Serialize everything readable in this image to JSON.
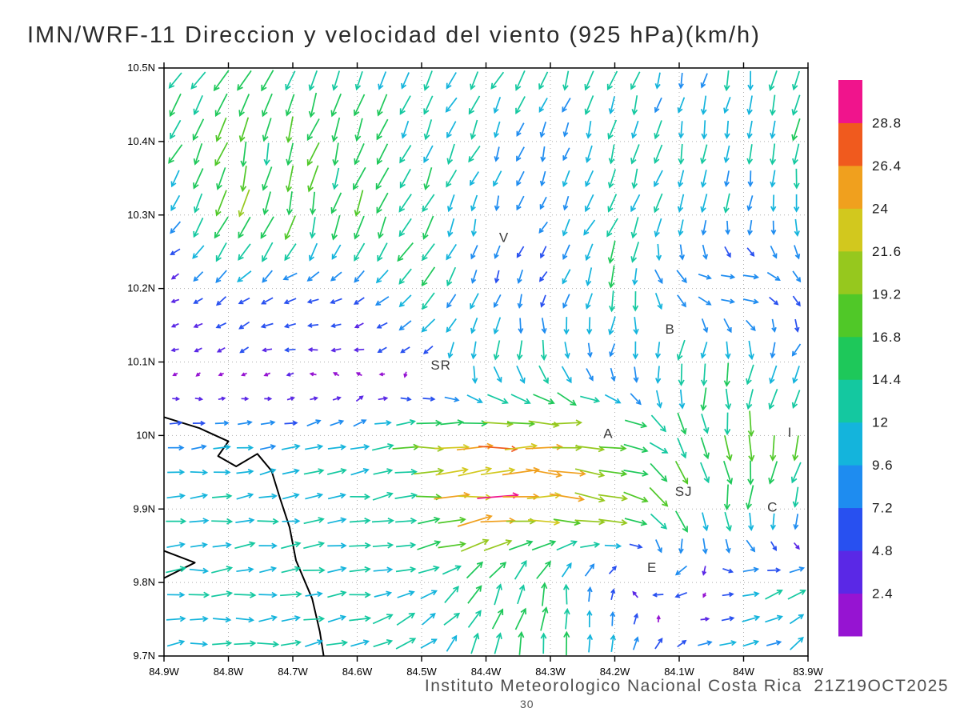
{
  "title": "IMN/WRF-11 Direccion y velocidad del viento (925 hPa)(km/h)",
  "footer": {
    "text": "Instituto Meteorologico Nacional Costa Rica  21Z19OCT2025",
    "annotation": "30"
  },
  "chart_data": {
    "type": "quiver",
    "title": "IMN/WRF-11 Direccion y velocidad del viento (925 hPa)(km/h)",
    "units": "km/h",
    "level": "925 hPa",
    "lon_range": [
      -84.9,
      -83.9
    ],
    "lat_range": [
      9.7,
      10.5
    ],
    "grid_dotted": true,
    "x_axis": {
      "ticks": [
        "84.9W",
        "84.8W",
        "84.7W",
        "84.6W",
        "84.5W",
        "84.4W",
        "84.3W",
        "84.2W",
        "84.1W",
        "84W",
        "83.9W"
      ],
      "lon_values": [
        -84.9,
        -84.8,
        -84.7,
        -84.6,
        -84.5,
        -84.4,
        -84.3,
        -84.2,
        -84.1,
        -84.0,
        -83.9
      ]
    },
    "y_axis": {
      "ticks": [
        "10.5N",
        "10.4N",
        "10.3N",
        "10.2N",
        "10.1N",
        "10N",
        "9.9N",
        "9.8N",
        "9.7N"
      ],
      "lat_values": [
        10.5,
        10.4,
        10.3,
        10.2,
        10.1,
        10.0,
        9.9,
        9.8,
        9.7
      ]
    },
    "colorbar": {
      "levels": [
        2.4,
        4.8,
        7.2,
        9.6,
        12,
        14.4,
        16.8,
        19.2,
        21.6,
        24,
        26.4,
        28.8
      ],
      "labels": [
        "2.4",
        "4.8",
        "7.2",
        "9.6",
        "12",
        "14.4",
        "16.8",
        "19.2",
        "21.6",
        "24",
        "26.4",
        "28.8"
      ],
      "colors": [
        "#9614D2",
        "#5A28E6",
        "#2850F0",
        "#1E8CF0",
        "#14B4DC",
        "#14C8A0",
        "#1EC85A",
        "#50C828",
        "#96C81E",
        "#D2C81E",
        "#F0A01E",
        "#F05A1E",
        "#F0148C"
      ]
    },
    "arrow_density": {
      "nx": 28,
      "ny": 24
    },
    "wind_grid": {
      "lons": [
        -84.9,
        -84.8,
        -84.7,
        -84.6,
        -84.5,
        -84.4,
        -84.3,
        -84.2,
        -84.1,
        -84.0,
        -83.9
      ],
      "lats_top_to_bottom": [
        10.5,
        10.4,
        10.3,
        10.2,
        10.1,
        10.0,
        9.9,
        9.8,
        9.7
      ],
      "uv_kmh": [
        [
          [
            -8,
            -12
          ],
          [
            -8,
            -13
          ],
          [
            -4,
            -12
          ],
          [
            -5,
            -12
          ],
          [
            -6,
            -11
          ],
          [
            -6,
            -11
          ],
          [
            -5,
            -12
          ],
          [
            -4,
            -12
          ],
          [
            -2,
            -9
          ],
          [
            -2,
            -12
          ],
          [
            -2,
            -14
          ]
        ],
        [
          [
            -9,
            -13
          ],
          [
            -5,
            -15
          ],
          [
            -4,
            -16
          ],
          [
            -6,
            -14
          ],
          [
            -5,
            -11
          ],
          [
            -5,
            -10
          ],
          [
            -2,
            -8
          ],
          [
            -3,
            -11
          ],
          [
            -2,
            -11
          ],
          [
            -1,
            -11
          ],
          [
            -2,
            -14
          ]
        ],
        [
          [
            -6,
            -4
          ],
          [
            -7,
            -19
          ],
          [
            -4,
            -17
          ],
          [
            -6,
            -15
          ],
          [
            -7,
            -14
          ],
          [
            -2,
            -8
          ],
          [
            -4,
            -7
          ],
          [
            -6,
            -13
          ],
          [
            -5,
            -12
          ],
          [
            -2,
            -10
          ],
          [
            2,
            -10
          ]
        ],
        [
          [
            -3,
            0
          ],
          [
            -6,
            -6
          ],
          [
            -7,
            -2
          ],
          [
            -6,
            -4
          ],
          [
            -9,
            -12
          ],
          [
            -3,
            -7
          ],
          [
            -4,
            -6
          ],
          [
            -3,
            -14
          ],
          [
            9,
            -6
          ],
          [
            11,
            3
          ],
          [
            5,
            -8
          ]
        ],
        [
          [
            -3,
            -1
          ],
          [
            -3,
            -1
          ],
          [
            -5,
            -1
          ],
          [
            -4,
            1
          ],
          [
            -4,
            -3
          ],
          [
            -2,
            -14
          ],
          [
            4,
            -12
          ],
          [
            -1,
            -7
          ],
          [
            -5,
            -13
          ],
          [
            -2,
            -15
          ],
          [
            -6,
            -6
          ]
        ],
        [
          [
            8,
            1
          ],
          [
            9,
            1
          ],
          [
            10,
            2
          ],
          [
            10,
            3
          ],
          [
            18,
            2
          ],
          [
            24,
            2
          ],
          [
            24,
            0
          ],
          [
            18,
            -2
          ],
          [
            8,
            -12
          ],
          [
            0,
            -16
          ],
          [
            -2,
            -15
          ]
        ],
        [
          [
            11,
            1
          ],
          [
            12,
            1
          ],
          [
            12,
            2
          ],
          [
            13,
            2
          ],
          [
            16,
            2
          ],
          [
            29,
            1
          ],
          [
            25,
            -1
          ],
          [
            21,
            -2
          ],
          [
            10,
            -14
          ],
          [
            -1,
            -16
          ],
          [
            -5,
            -10
          ]
        ],
        [
          [
            12,
            1
          ],
          [
            12,
            1
          ],
          [
            12,
            1
          ],
          [
            12,
            1
          ],
          [
            12,
            3
          ],
          [
            8,
            12
          ],
          [
            2,
            14
          ],
          [
            0,
            4
          ],
          [
            -10,
            -5
          ],
          [
            10,
            3
          ],
          [
            10,
            6
          ]
        ],
        [
          [
            11,
            1
          ],
          [
            12,
            1
          ],
          [
            13,
            2
          ],
          [
            12,
            4
          ],
          [
            10,
            8
          ],
          [
            4,
            14
          ],
          [
            2,
            15
          ],
          [
            3,
            12
          ],
          [
            8,
            4
          ],
          [
            10,
            3
          ],
          [
            8,
            6
          ]
        ]
      ]
    },
    "stations": [
      {
        "label": "V",
        "lon": -84.372,
        "lat": 10.27
      },
      {
        "label": "B",
        "lon": -84.114,
        "lat": 10.145
      },
      {
        "label": "SR",
        "lon": -84.47,
        "lat": 10.096
      },
      {
        "label": "A",
        "lon": -84.21,
        "lat": 10.003
      },
      {
        "label": "SJ",
        "lon": -84.093,
        "lat": 9.924
      },
      {
        "label": "C",
        "lon": -83.955,
        "lat": 9.903
      },
      {
        "label": "E",
        "lon": -84.142,
        "lat": 9.821
      },
      {
        "label": "I",
        "lon": -83.928,
        "lat": 10.005
      }
    ],
    "coastline": [
      [
        [
          -84.9,
          10.025
        ],
        [
          -84.845,
          10.01
        ],
        [
          -84.8,
          9.992
        ],
        [
          -84.816,
          9.972
        ],
        [
          -84.788,
          9.958
        ],
        [
          -84.755,
          9.975
        ],
        [
          -84.733,
          9.952
        ],
        [
          -84.72,
          9.915
        ],
        [
          -84.705,
          9.875
        ],
        [
          -84.695,
          9.83
        ],
        [
          -84.67,
          9.778
        ],
        [
          -84.658,
          9.733
        ],
        [
          -84.652,
          9.7
        ]
      ],
      [
        [
          -84.9,
          9.806
        ],
        [
          -84.852,
          9.827
        ],
        [
          -84.9,
          9.843
        ]
      ]
    ]
  }
}
